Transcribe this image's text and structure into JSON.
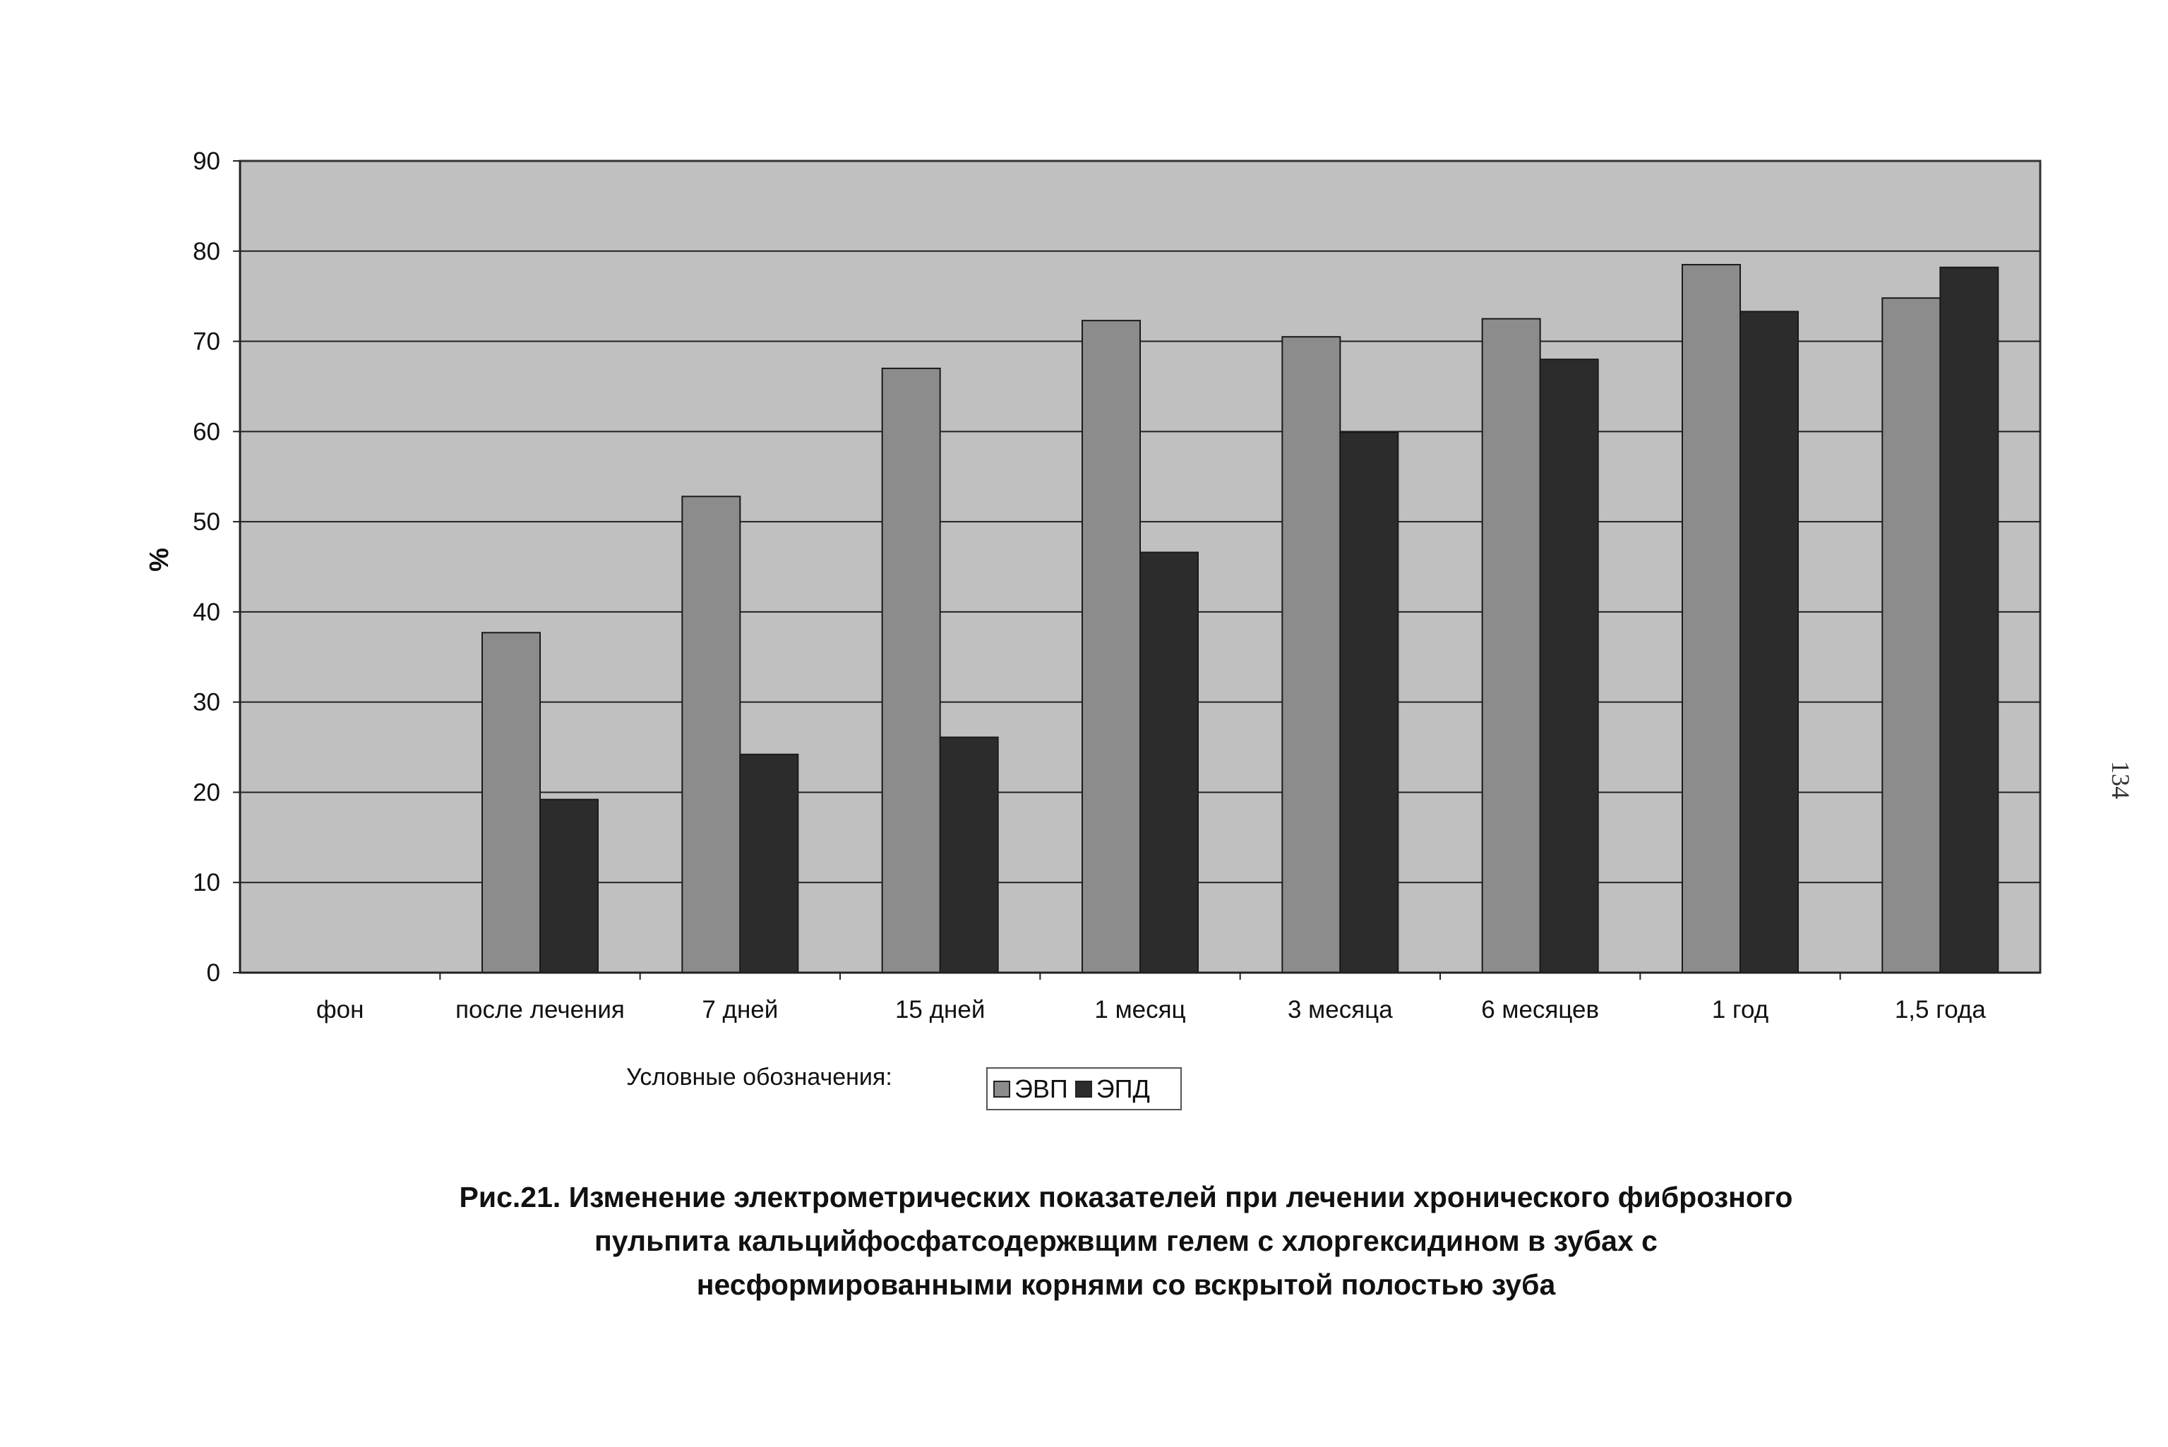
{
  "chart_data": {
    "type": "bar",
    "categories": [
      "фон",
      "после лечения",
      "7 дней",
      "15 дней",
      "1 месяц",
      "3 месяца",
      "6 месяцев",
      "1 год",
      "1,5 года"
    ],
    "series": [
      {
        "name": "ЭВП",
        "values": [
          0,
          37.7,
          52.8,
          67.0,
          72.3,
          70.5,
          72.5,
          78.5,
          74.8
        ],
        "color": "#8c8c8c"
      },
      {
        "name": "ЭПД",
        "values": [
          0,
          19.2,
          24.2,
          26.1,
          46.6,
          59.9,
          68.0,
          73.3,
          78.2
        ],
        "color": "#2c2c2c"
      }
    ],
    "ylabel": "%",
    "xlabel": "",
    "ylim": [
      0,
      90
    ],
    "yticks": [
      0,
      10,
      20,
      30,
      40,
      50,
      60,
      70,
      80,
      90
    ],
    "grid": true,
    "plot_background": "#c0c0c0",
    "legend_caption": "Условные обозначения:",
    "legend_placement": "bottom-center"
  },
  "caption": {
    "line1": "Рис.21. Изменение электрометрических показателей при лечении хронического фиброзного",
    "line2": "пульпита кальцийфосфатсодержвщим гелем с хлоргексидином в зубах с",
    "line3": "несформированными корнями со вскрытой полостью зуба"
  },
  "page_number": "134"
}
